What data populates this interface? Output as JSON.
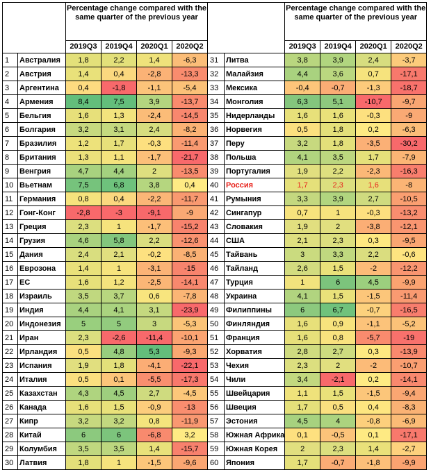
{
  "chart_data": {
    "type": "table",
    "header": "Percentage change compared with the same quarter of the previous year",
    "columns": [
      "2019Q3",
      "2019Q4",
      "2020Q1",
      "2020Q2"
    ],
    "highlight_color": "#e8231c",
    "rows": [
      {
        "n": "1",
        "name": "Австралия",
        "v": [
          "1,8",
          "2,2",
          "1,4",
          "-6,3"
        ],
        "c": [
          "#e3e07a",
          "#e3e07a",
          "#efe27b",
          "#fbbd78"
        ]
      },
      {
        "n": "2",
        "name": "Австрия",
        "v": [
          "1,4",
          "0,4",
          "-2,8",
          "-13,3"
        ],
        "c": [
          "#e9e17a",
          "#fbd87f",
          "#fbb276",
          "#f98c6e"
        ]
      },
      {
        "n": "3",
        "name": "Аргентина",
        "v": [
          "0,4",
          "-1,8",
          "-1,1",
          "-5,4"
        ],
        "c": [
          "#fddb80",
          "#f8696b",
          "#fcc37a",
          "#fbc178"
        ]
      },
      {
        "n": "4",
        "name": "Армения",
        "v": [
          "8,4",
          "7,5",
          "3,9",
          "-13,7"
        ],
        "c": [
          "#63be7b",
          "#63be7b",
          "#b3d57f",
          "#f98b6e"
        ]
      },
      {
        "n": "5",
        "name": "Бельгия",
        "v": [
          "1,6",
          "1,3",
          "-2,4",
          "-14,5"
        ],
        "c": [
          "#e7e07a",
          "#f2e37d",
          "#fbbc78",
          "#f8876e"
        ]
      },
      {
        "n": "6",
        "name": "Болгария",
        "v": [
          "3,2",
          "3,1",
          "2,4",
          "-8,2"
        ],
        "c": [
          "#c7d97f",
          "#c4d97f",
          "#d7dd7f",
          "#fbb274"
        ]
      },
      {
        "n": "7",
        "name": "Бразилия",
        "v": [
          "1,2",
          "1,7",
          "-0,3",
          "-11,4"
        ],
        "c": [
          "#ede27b",
          "#e7e07a",
          "#fde07f",
          "#f99a71"
        ]
      },
      {
        "n": "8",
        "name": "Британия",
        "v": [
          "1,3",
          "1,1",
          "-1,7",
          "-21,7"
        ],
        "c": [
          "#ebe17b",
          "#f4e37d",
          "#fcbf79",
          "#f8696b"
        ]
      },
      {
        "n": "9",
        "name": "Венгрия",
        "v": [
          "4,7",
          "4,4",
          "2",
          "-13,5"
        ],
        "c": [
          "#a8d27f",
          "#a3d17f",
          "#dedf7f",
          "#f98c6e"
        ]
      },
      {
        "n": "10",
        "name": "Вьетнам",
        "v": [
          "7,5",
          "6,8",
          "3,8",
          "0,4"
        ],
        "c": [
          "#76c37c",
          "#6ec27c",
          "#b5d67f",
          "#ffeb84"
        ]
      },
      {
        "n": "11",
        "name": "Германия",
        "v": [
          "0,8",
          "0,4",
          "-2,2",
          "-11,7"
        ],
        "c": [
          "#f6e37d",
          "#fbd87f",
          "#fbb677",
          "#f99970"
        ]
      },
      {
        "n": "12",
        "name": "Гонг-Конг",
        "v": [
          "-2,8",
          "-3",
          "-9,1",
          "-9"
        ],
        "c": [
          "#f8696b",
          "#f8696b",
          "#f8696b",
          "#faa974"
        ]
      },
      {
        "n": "13",
        "name": "Греция",
        "v": [
          "2,3",
          "1",
          "-1,7",
          "-15,2"
        ],
        "c": [
          "#dcdf7f",
          "#f6e37d",
          "#fcbf79",
          "#f8836d"
        ]
      },
      {
        "n": "14",
        "name": "Грузия",
        "v": [
          "4,6",
          "5,8",
          "2,2",
          "-12,6"
        ],
        "c": [
          "#a9d27f",
          "#82c67d",
          "#dadd7f",
          "#f99270"
        ]
      },
      {
        "n": "15",
        "name": "Дания",
        "v": [
          "2,4",
          "2,1",
          "-0,2",
          "-8,5"
        ],
        "c": [
          "#d9de7f",
          "#e1df7f",
          "#fde180",
          "#fab174"
        ]
      },
      {
        "n": "16",
        "name": "Еврозона",
        "v": [
          "1,4",
          "1",
          "-3,1",
          "-15"
        ],
        "c": [
          "#e9e17a",
          "#f6e37d",
          "#fbb376",
          "#f8846d"
        ]
      },
      {
        "n": "17",
        "name": "ЕС",
        "v": [
          "1,6",
          "1,2",
          "-2,5",
          "-14,1"
        ],
        "c": [
          "#e7e07a",
          "#f4e37d",
          "#fbb676",
          "#f8886e"
        ]
      },
      {
        "n": "18",
        "name": "Израиль",
        "v": [
          "3,5",
          "3,7",
          "0,6",
          "-7,8"
        ],
        "c": [
          "#c0d87f",
          "#b8d67f",
          "#f8e57e",
          "#fbb575"
        ]
      },
      {
        "n": "19",
        "name": "Индия",
        "v": [
          "4,4",
          "4,1",
          "3,1",
          "-23,9"
        ],
        "c": [
          "#a9d27f",
          "#aad37f",
          "#c5d97f",
          "#f8696b"
        ]
      },
      {
        "n": "20",
        "name": "Индонезия",
        "v": [
          "5",
          "5",
          "3",
          "-5,3"
        ],
        "c": [
          "#99cf7e",
          "#92cb7e",
          "#c7d97f",
          "#fbc478"
        ]
      },
      {
        "n": "21",
        "name": "Иран",
        "v": [
          "2,3",
          "-2,6",
          "-11,4",
          "-10,1"
        ],
        "c": [
          "#dcdf7f",
          "#f8696b",
          "#f8696b",
          "#fba472"
        ]
      },
      {
        "n": "22",
        "name": "Ирландия",
        "v": [
          "0,5",
          "4,8",
          "5,3",
          "-9,3"
        ],
        "c": [
          "#fbe07f",
          "#97cd7e",
          "#63be7b",
          "#faa872"
        ]
      },
      {
        "n": "23",
        "name": "Испания",
        "v": [
          "1,9",
          "1,8",
          "-4,1",
          "-22,1"
        ],
        "c": [
          "#e1df7f",
          "#e3e07a",
          "#fbad75",
          "#f8696b"
        ]
      },
      {
        "n": "24",
        "name": "Италия",
        "v": [
          "0,5",
          "0,1",
          "-5,5",
          "-17,3"
        ],
        "c": [
          "#fbe07f",
          "#fcc57a",
          "#f98e6f",
          "#f8786c"
        ]
      },
      {
        "n": "25",
        "name": "Казахстан",
        "v": [
          "4,3",
          "4,5",
          "2,7",
          "-4,5"
        ],
        "c": [
          "#afd47f",
          "#9ecf7e",
          "#cfdb7f",
          "#fcc77a"
        ]
      },
      {
        "n": "26",
        "name": "Канада",
        "v": [
          "1,6",
          "1,5",
          "-0,9",
          "-13"
        ],
        "c": [
          "#e7e07a",
          "#e9e17a",
          "#fccd7c",
          "#f98e6f"
        ]
      },
      {
        "n": "27",
        "name": "Кипр",
        "v": [
          "3,2",
          "3,2",
          "0,8",
          "-11,9"
        ],
        "c": [
          "#c7d97f",
          "#c2d87f",
          "#f4e47d",
          "#f99871"
        ]
      },
      {
        "n": "28",
        "name": "Китай",
        "v": [
          "6",
          "6",
          "-6,8",
          "3,2"
        ],
        "c": [
          "#8cc97e",
          "#7cc47c",
          "#f88a6e",
          "#ffeb84"
        ]
      },
      {
        "n": "29",
        "name": "Колумбия",
        "v": [
          "3,5",
          "3,5",
          "1,4",
          "-15,7"
        ],
        "c": [
          "#c0d87f",
          "#bcd77f",
          "#e9e17a",
          "#f8816d"
        ]
      },
      {
        "n": "30",
        "name": "Латвия",
        "v": [
          "1,8",
          "1",
          "-1,5",
          "-9,6"
        ],
        "c": [
          "#e3e07a",
          "#f6e37d",
          "#fcc67a",
          "#faa672"
        ]
      }
    ],
    "rows_right": [
      {
        "n": "31",
        "name": "Литва",
        "v": [
          "3,8",
          "3,9",
          "2,4",
          "-3,7"
        ],
        "c": [
          "#b9d67f",
          "#b1d57f",
          "#d7dd7f",
          "#fccb7b"
        ]
      },
      {
        "n": "32",
        "name": "Малайзия",
        "v": [
          "4,4",
          "3,6",
          "0,7",
          "-17,1"
        ],
        "c": [
          "#a9d27f",
          "#bad77f",
          "#f6e37d",
          "#f8796c"
        ]
      },
      {
        "n": "33",
        "name": "Мексика",
        "v": [
          "-0,4",
          "-0,7",
          "-1,3",
          "-18,7"
        ],
        "c": [
          "#fcc57a",
          "#fbac75",
          "#fccb7b",
          "#f8726c"
        ]
      },
      {
        "n": "34",
        "name": "Монголия",
        "v": [
          "6,3",
          "5,1",
          "-10,7",
          "-9,7"
        ],
        "c": [
          "#84c67d",
          "#8ec97e",
          "#f8696b",
          "#faa572"
        ]
      },
      {
        "n": "35",
        "name": "Нидерланды",
        "v": [
          "1,6",
          "1,6",
          "-0,3",
          "-9"
        ],
        "c": [
          "#e7e07a",
          "#e9e17a",
          "#fde07f",
          "#faa974"
        ]
      },
      {
        "n": "36",
        "name": "Норвегия",
        "v": [
          "0,5",
          "1,8",
          "0,2",
          "-6,3"
        ],
        "c": [
          "#fbe07f",
          "#e3e07a",
          "#feea83",
          "#fbbd78"
        ]
      },
      {
        "n": "37",
        "name": "Перу",
        "v": [
          "3,2",
          "1,8",
          "-3,5",
          "-30,2"
        ],
        "c": [
          "#c7d97f",
          "#e3e07a",
          "#fbb076",
          "#f8696b"
        ]
      },
      {
        "n": "38",
        "name": "Польша",
        "v": [
          "4,1",
          "3,5",
          "1,7",
          "-7,9"
        ],
        "c": [
          "#b1d47f",
          "#bcd77f",
          "#e5e07a",
          "#fbb575"
        ]
      },
      {
        "n": "39",
        "name": "Португалия",
        "v": [
          "1,9",
          "2,2",
          "-2,3",
          "-16,3"
        ],
        "c": [
          "#e1df7f",
          "#dedf7f",
          "#fbb877",
          "#f87e6d"
        ]
      },
      {
        "n": "40",
        "name": "Россия",
        "v": [
          "1,7",
          "2,3",
          "1,6",
          "-8"
        ],
        "c": [
          "#e5e07a",
          "#dcdf7f",
          "#e7e07a",
          "#fbb475"
        ],
        "hl": true
      },
      {
        "n": "41",
        "name": "Румыния",
        "v": [
          "3,3",
          "3,9",
          "2,7",
          "-10,5"
        ],
        "c": [
          "#c4d87f",
          "#b1d57f",
          "#cfdb7f",
          "#fa9f71"
        ]
      },
      {
        "n": "42",
        "name": "Сингапур",
        "v": [
          "0,7",
          "1",
          "-0,3",
          "-13,2"
        ],
        "c": [
          "#f7e37d",
          "#f6e37d",
          "#fde07f",
          "#f98d6f"
        ]
      },
      {
        "n": "43",
        "name": "Словакия",
        "v": [
          "1,9",
          "2",
          "-3,8",
          "-12,1"
        ],
        "c": [
          "#e1df7f",
          "#e1df7f",
          "#fbae75",
          "#f99570"
        ]
      },
      {
        "n": "44",
        "name": "США",
        "v": [
          "2,1",
          "2,3",
          "0,3",
          "-9,5"
        ],
        "c": [
          "#dedf7f",
          "#dcdf7f",
          "#fee881",
          "#faa672"
        ]
      },
      {
        "n": "45",
        "name": "Тайвань",
        "v": [
          "3",
          "3,3",
          "2,2",
          "-0,6"
        ],
        "c": [
          "#cadb7f",
          "#c0d87f",
          "#dadd7f",
          "#fee480"
        ]
      },
      {
        "n": "46",
        "name": "Тайланд",
        "v": [
          "2,6",
          "1,5",
          "-2",
          "-12,2"
        ],
        "c": [
          "#d3dc7f",
          "#e9e17a",
          "#fcbb78",
          "#f99570"
        ]
      },
      {
        "n": "47",
        "name": "Турция",
        "v": [
          "1",
          "6",
          "4,5",
          "-9,9"
        ],
        "c": [
          "#f1e37d",
          "#7cc47c",
          "#9ccf7e",
          "#faa371"
        ]
      },
      {
        "n": "48",
        "name": "Украина",
        "v": [
          "4,1",
          "1,5",
          "-1,5",
          "-11,4"
        ],
        "c": [
          "#b1d47f",
          "#e9e17a",
          "#fcc67a",
          "#f99a71"
        ]
      },
      {
        "n": "49",
        "name": "Филиппины",
        "v": [
          "6",
          "6,7",
          "-0,7",
          "-16,5"
        ],
        "c": [
          "#8cc97e",
          "#70c27c",
          "#fcd17d",
          "#f87d6d"
        ]
      },
      {
        "n": "50",
        "name": "Финляндия",
        "v": [
          "1,6",
          "0,9",
          "-1,1",
          "-5,2"
        ],
        "c": [
          "#e7e07a",
          "#f7e37d",
          "#fcc37a",
          "#fbc278"
        ]
      },
      {
        "n": "51",
        "name": "Франция",
        "v": [
          "1,6",
          "0,8",
          "-5,7",
          "-19"
        ],
        "c": [
          "#e7e07a",
          "#f9e27e",
          "#f98b6e",
          "#f8716c"
        ]
      },
      {
        "n": "52",
        "name": "Хорватия",
        "v": [
          "2,8",
          "2,7",
          "0,3",
          "-13,9"
        ],
        "c": [
          "#cfdb7f",
          "#cddb7f",
          "#fee881",
          "#f9896e"
        ]
      },
      {
        "n": "53",
        "name": "Чехия",
        "v": [
          "2,3",
          "2",
          "-2",
          "-10,7"
        ],
        "c": [
          "#dcdf7f",
          "#e1df7f",
          "#fcbb78",
          "#fa9e71"
        ]
      },
      {
        "n": "54",
        "name": "Чили",
        "v": [
          "3,4",
          "-2,1",
          "0,2",
          "-14,1"
        ],
        "c": [
          "#c2d87f",
          "#f8696b",
          "#feea83",
          "#f8886e"
        ]
      },
      {
        "n": "55",
        "name": "Швейцария",
        "v": [
          "1,1",
          "1,5",
          "-1,5",
          "-9,4"
        ],
        "c": [
          "#efe27b",
          "#e9e17a",
          "#fcc67a",
          "#faa672"
        ]
      },
      {
        "n": "56",
        "name": "Швеция",
        "v": [
          "1,7",
          "0,5",
          "0,4",
          "-8,3"
        ],
        "c": [
          "#e5e07a",
          "#fbdf7f",
          "#fde680",
          "#fab274"
        ]
      },
      {
        "n": "57",
        "name": "Эстония",
        "v": [
          "4,5",
          "4",
          "-0,8",
          "-6,9"
        ],
        "c": [
          "#a7d27f",
          "#acd37f",
          "#fccf7c",
          "#fbbb76"
        ]
      },
      {
        "n": "58",
        "name": "Южная Африка",
        "v": [
          "0,1",
          "-0,5",
          "0,1",
          "-17,1"
        ],
        "c": [
          "#fee07f",
          "#fcc37a",
          "#feea83",
          "#f8796c"
        ]
      },
      {
        "n": "59",
        "name": "Южная Корея",
        "v": [
          "2",
          "2,3",
          "1,4",
          "-2,7"
        ],
        "c": [
          "#e1df7f",
          "#dcdf7f",
          "#e9e17a",
          "#fdd17d"
        ]
      },
      {
        "n": "60",
        "name": "Япония",
        "v": [
          "1,7",
          "-0,7",
          "-1,8",
          "-9,9"
        ],
        "c": [
          "#e5e07a",
          "#fbac75",
          "#fcbf79",
          "#faa371"
        ]
      }
    ]
  }
}
